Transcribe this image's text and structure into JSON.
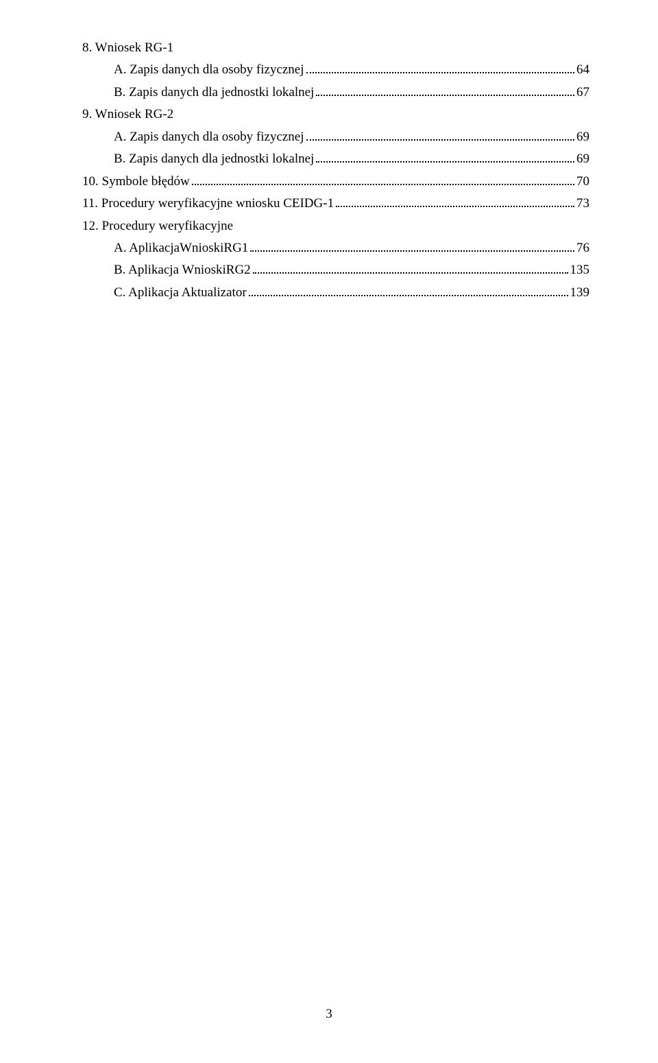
{
  "toc": [
    {
      "indent": 0,
      "label": "8.  Wniosek RG-1",
      "page": ""
    },
    {
      "indent": 1,
      "label": "A. Zapis danych dla osoby fizycznej",
      "page": "64"
    },
    {
      "indent": 1,
      "label": "B. Zapis danych dla jednostki lokalnej",
      "page": "67"
    },
    {
      "indent": 0,
      "label": "9.  Wniosek RG-2",
      "page": ""
    },
    {
      "indent": 1,
      "label": "A. Zapis danych dla osoby fizycznej",
      "page": "69"
    },
    {
      "indent": 1,
      "label": "B. Zapis danych dla jednostki lokalnej",
      "page": "69"
    },
    {
      "indent": 0,
      "label": "10. Symbole błędów",
      "page": "70"
    },
    {
      "indent": 0,
      "label": "11. Procedury weryfikacyjne wniosku CEIDG-1",
      "page": "73"
    },
    {
      "indent": 0,
      "label": "12. Procedury weryfikacyjne",
      "page": ""
    },
    {
      "indent": 1,
      "label": "A. AplikacjaWnioskiRG1",
      "page": "76"
    },
    {
      "indent": 1,
      "label": "B. Aplikacja WnioskiRG2",
      "page": "135"
    },
    {
      "indent": 1,
      "label": "C. Aplikacja Aktualizator",
      "page": "139"
    }
  ],
  "footer_page_number": "3"
}
